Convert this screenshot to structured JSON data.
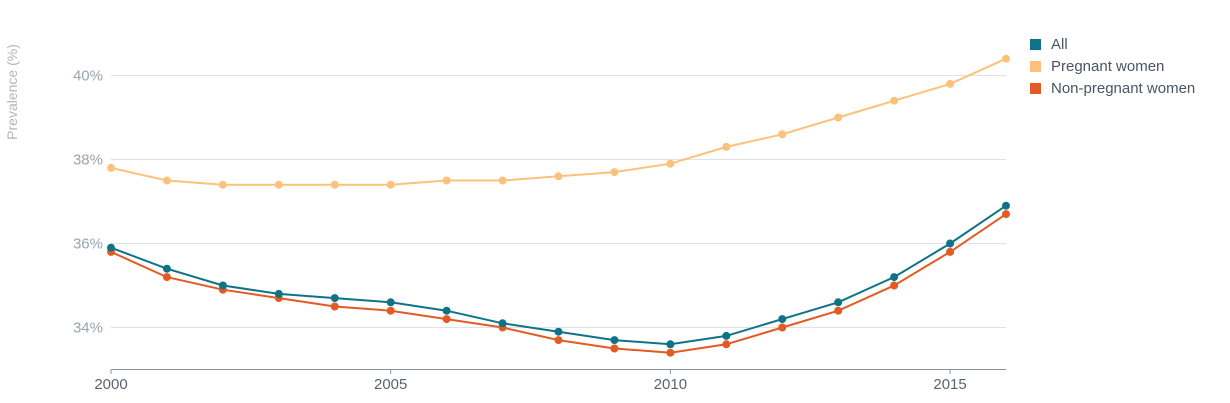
{
  "chart_data": {
    "type": "line",
    "title": "",
    "xlabel": "",
    "ylabel": "Prevalence (%)",
    "x": [
      2000,
      2001,
      2002,
      2003,
      2004,
      2005,
      2006,
      2007,
      2008,
      2009,
      2010,
      2011,
      2012,
      2013,
      2014,
      2015,
      2016
    ],
    "x_ticks": [
      2000,
      2005,
      2010,
      2015
    ],
    "x_tick_labels": [
      "2000",
      "2005",
      "2010",
      "2015"
    ],
    "y_ticks": [
      34,
      36,
      38,
      40
    ],
    "y_tick_labels": [
      "34%",
      "36%",
      "38%",
      "40%"
    ],
    "xlim": [
      2000,
      2016
    ],
    "ylim": [
      33,
      41.5
    ],
    "grid": "horizontal",
    "legend_position": "top-right",
    "series": [
      {
        "name": "All",
        "color": "#0f7387",
        "values": [
          35.9,
          35.4,
          35.0,
          34.8,
          34.7,
          34.6,
          34.4,
          34.1,
          33.9,
          33.7,
          33.6,
          33.8,
          34.2,
          34.6,
          35.2,
          36.0,
          36.9
        ]
      },
      {
        "name": "Pregnant women",
        "color": "#fcc27b",
        "values": [
          37.8,
          37.5,
          37.4,
          37.4,
          37.4,
          37.4,
          37.5,
          37.5,
          37.6,
          37.7,
          37.9,
          38.3,
          38.6,
          39.0,
          39.4,
          39.8,
          40.4
        ]
      },
      {
        "name": "Non-pregnant women",
        "color": "#e35a24",
        "values": [
          35.8,
          35.2,
          34.9,
          34.7,
          34.5,
          34.4,
          34.2,
          34.0,
          33.7,
          33.5,
          33.4,
          33.6,
          34.0,
          34.4,
          35.0,
          35.8,
          36.7
        ]
      }
    ]
  }
}
